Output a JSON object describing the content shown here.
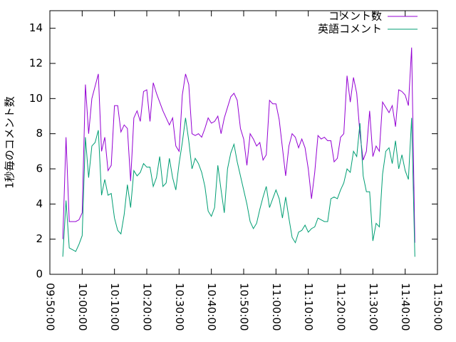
{
  "chart_data": {
    "type": "line",
    "y_label": "1秒毎のコメント数",
    "x": [
      "09:54:00",
      "09:55:00",
      "09:56:00",
      "09:57:00",
      "09:58:00",
      "09:59:00",
      "10:00:00",
      "10:01:00",
      "10:02:00",
      "10:03:00",
      "10:04:00",
      "10:05:00",
      "10:06:00",
      "10:07:00",
      "10:08:00",
      "10:09:00",
      "10:10:00",
      "10:11:00",
      "10:12:00",
      "10:13:00",
      "10:14:00",
      "10:15:00",
      "10:16:00",
      "10:17:00",
      "10:18:00",
      "10:19:00",
      "10:20:00",
      "10:21:00",
      "10:22:00",
      "10:23:00",
      "10:24:00",
      "10:25:00",
      "10:26:00",
      "10:27:00",
      "10:28:00",
      "10:29:00",
      "10:30:00",
      "10:31:00",
      "10:32:00",
      "10:33:00",
      "10:34:00",
      "10:35:00",
      "10:36:00",
      "10:37:00",
      "10:38:00",
      "10:39:00",
      "10:40:00",
      "10:41:00",
      "10:42:00",
      "10:43:00",
      "10:44:00",
      "10:45:00",
      "10:46:00",
      "10:47:00",
      "10:48:00",
      "10:49:00",
      "10:50:00",
      "10:51:00",
      "10:52:00",
      "10:53:00",
      "10:54:00",
      "10:55:00",
      "10:56:00",
      "10:57:00",
      "10:58:00",
      "10:59:00",
      "11:00:00",
      "11:01:00",
      "11:02:00",
      "11:03:00",
      "11:04:00",
      "11:05:00",
      "11:06:00",
      "11:07:00",
      "11:08:00",
      "11:09:00",
      "11:10:00",
      "11:11:00",
      "11:12:00",
      "11:13:00",
      "11:14:00",
      "11:15:00",
      "11:16:00",
      "11:17:00",
      "11:18:00",
      "11:19:00",
      "11:20:00",
      "11:21:00",
      "11:22:00",
      "11:23:00",
      "11:24:00",
      "11:25:00",
      "11:26:00",
      "11:27:00",
      "11:28:00",
      "11:29:00",
      "11:30:00",
      "11:31:00",
      "11:32:00",
      "11:33:00",
      "11:34:00",
      "11:35:00",
      "11:36:00",
      "11:37:00",
      "11:38:00",
      "11:39:00",
      "11:40:00",
      "11:41:00",
      "11:42:00",
      "11:43:00"
    ],
    "series": [
      {
        "name": "コメント数",
        "color": "#9400d3",
        "values": [
          2.0,
          7.8,
          3.0,
          3.0,
          3.0,
          3.1,
          3.5,
          10.8,
          8.0,
          10.0,
          10.7,
          11.4,
          7.0,
          7.8,
          5.9,
          6.2,
          9.6,
          9.6,
          8.1,
          8.5,
          8.3,
          5.3,
          8.9,
          9.3,
          8.7,
          10.4,
          10.5,
          8.7,
          10.9,
          10.3,
          9.8,
          9.3,
          8.9,
          8.5,
          8.9,
          7.3,
          7.0,
          10.2,
          11.4,
          10.8,
          8.0,
          7.9,
          8.0,
          7.8,
          8.3,
          8.9,
          8.6,
          8.7,
          9.0,
          8.0,
          8.9,
          9.5,
          10.1,
          10.3,
          9.9,
          8.3,
          7.7,
          6.2,
          8.0,
          7.7,
          7.3,
          7.5,
          6.5,
          6.8,
          9.9,
          9.7,
          9.7,
          8.8,
          7.2,
          5.6,
          7.3,
          8.0,
          7.8,
          7.2,
          7.7,
          7.2,
          6.0,
          4.3,
          5.8,
          7.9,
          7.7,
          7.8,
          7.6,
          7.6,
          6.4,
          6.6,
          7.8,
          8.0,
          11.3,
          9.8,
          11.2,
          10.3,
          8.0,
          6.5,
          7.0,
          9.3,
          6.7,
          7.3,
          7.0,
          9.8,
          9.5,
          9.2,
          9.6,
          8.4,
          10.5,
          10.4,
          10.2,
          9.6,
          12.9,
          1.8
        ]
      },
      {
        "name": "英語コメント",
        "color": "#009e73",
        "values": [
          1.0,
          4.2,
          1.5,
          1.4,
          1.3,
          1.7,
          2.2,
          7.8,
          5.5,
          7.3,
          7.5,
          8.2,
          4.5,
          5.4,
          4.5,
          4.6,
          3.2,
          2.5,
          2.3,
          3.4,
          5.1,
          3.8,
          5.9,
          5.6,
          5.8,
          6.3,
          6.1,
          6.1,
          5.0,
          5.5,
          6.7,
          5.0,
          5.2,
          6.6,
          5.5,
          4.8,
          6.3,
          7.5,
          8.9,
          7.6,
          6.0,
          6.6,
          6.3,
          5.8,
          5.0,
          3.6,
          3.3,
          3.8,
          6.2,
          4.8,
          3.5,
          6.0,
          6.9,
          7.4,
          6.4,
          5.6,
          4.8,
          4.0,
          3.0,
          2.6,
          2.9,
          3.7,
          4.4,
          5.0,
          3.8,
          4.3,
          4.8,
          4.3,
          3.2,
          4.4,
          3.2,
          2.1,
          1.8,
          2.4,
          2.5,
          2.8,
          2.4,
          2.6,
          2.7,
          3.2,
          3.1,
          3.0,
          3.0,
          4.3,
          4.4,
          4.3,
          4.8,
          5.2,
          6.0,
          5.8,
          7.0,
          6.7,
          8.6,
          5.6,
          4.7,
          4.7,
          1.9,
          2.9,
          2.7,
          5.7,
          7.0,
          7.2,
          6.3,
          7.6,
          6.0,
          6.8,
          5.9,
          5.4,
          8.9,
          1.0
        ]
      }
    ],
    "xlim": [
      "09:50:00",
      "11:50:00"
    ],
    "xticks": [
      "09:50:00",
      "10:00:00",
      "10:10:00",
      "10:20:00",
      "10:30:00",
      "10:40:00",
      "10:50:00",
      "11:00:00",
      "11:10:00",
      "11:20:00",
      "11:30:00",
      "11:40:00",
      "11:50:00"
    ],
    "ylim": [
      0,
      15
    ],
    "yticks": [
      0,
      2,
      4,
      6,
      8,
      10,
      12,
      14
    ],
    "legend": "top right"
  }
}
